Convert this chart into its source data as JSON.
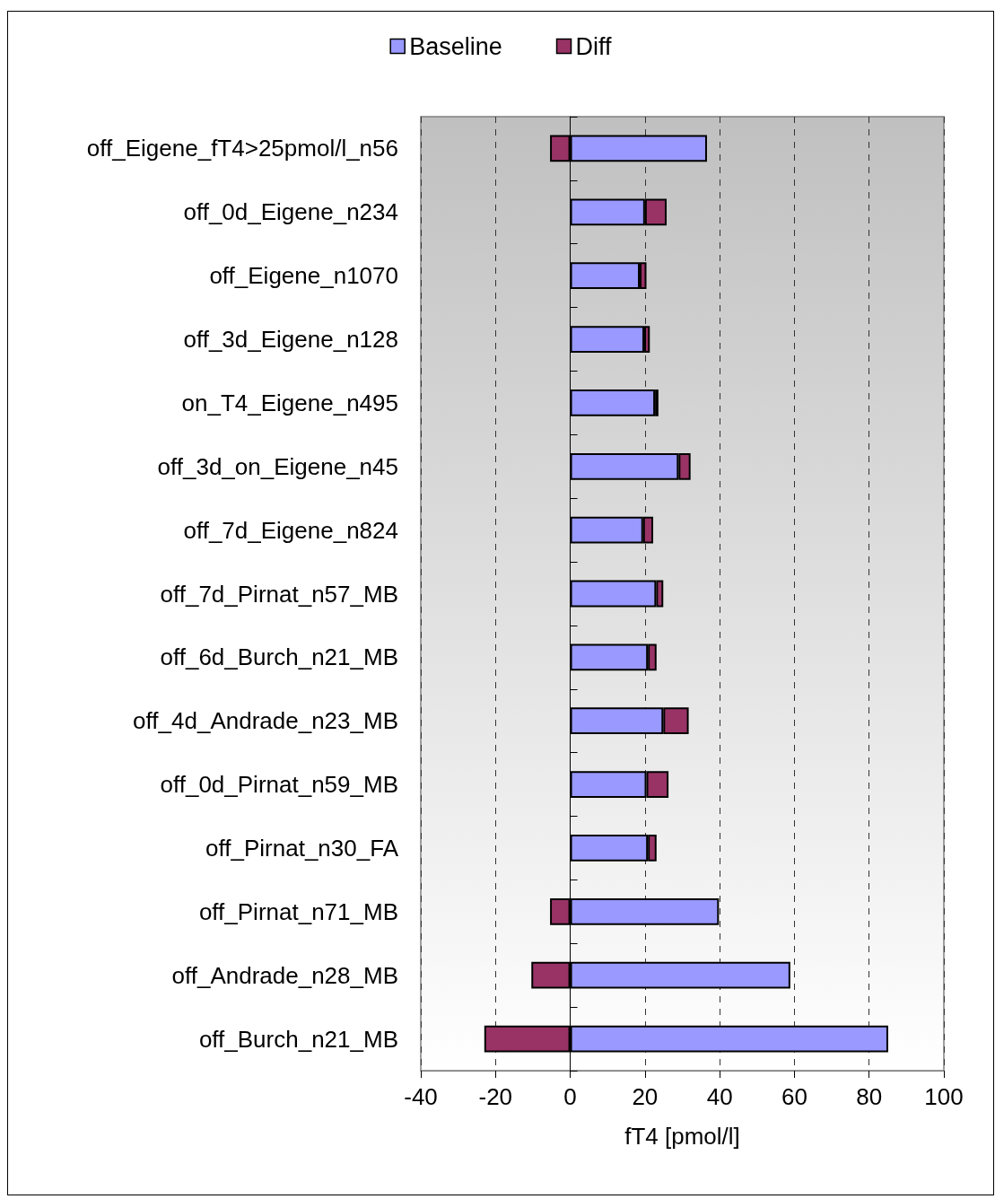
{
  "chart_data": {
    "type": "bar",
    "orientation": "horizontal",
    "stacked": true,
    "categories": [
      "off_Eigene_fT4>25pmol/l_n56",
      "off_0d_Eigene_n234",
      "off_Eigene_n1070",
      "off_3d_Eigene_n128",
      "on_T4_Eigene_n495",
      "off_3d_on_Eigene_n45",
      "off_7d_Eigene_n824",
      "off_7d_Pirnat_n57_MB",
      "off_6d_Burch_n21_MB",
      "off_4d_Andrade_n23_MB",
      "off_0d_Pirnat_n59_MB",
      "off_Pirnat_n30_FA",
      "off_Pirnat_n71_MB",
      "off_Andrade_n28_MB",
      "off_Burch_n21_MB"
    ],
    "series": [
      {
        "name": "Baseline",
        "color": "#9999ff",
        "values": [
          36.6,
          20.0,
          18.6,
          19.8,
          22.7,
          29.0,
          19.5,
          23.0,
          20.8,
          24.9,
          20.4,
          20.8,
          39.8,
          58.9,
          85.1
        ]
      },
      {
        "name": "Diff",
        "color": "#993366",
        "values": [
          -5.4,
          5.8,
          1.8,
          1.5,
          0.9,
          3.2,
          2.7,
          1.9,
          2.3,
          6.8,
          5.9,
          2.3,
          -5.4,
          -10.4,
          -23.0
        ]
      }
    ],
    "xlabel": "fT4 [pmol/l]",
    "xlim": [
      -40,
      100
    ],
    "xticks": [
      -40,
      -20,
      0,
      20,
      40,
      60,
      80,
      100
    ],
    "grid": "x",
    "legend": "top"
  }
}
